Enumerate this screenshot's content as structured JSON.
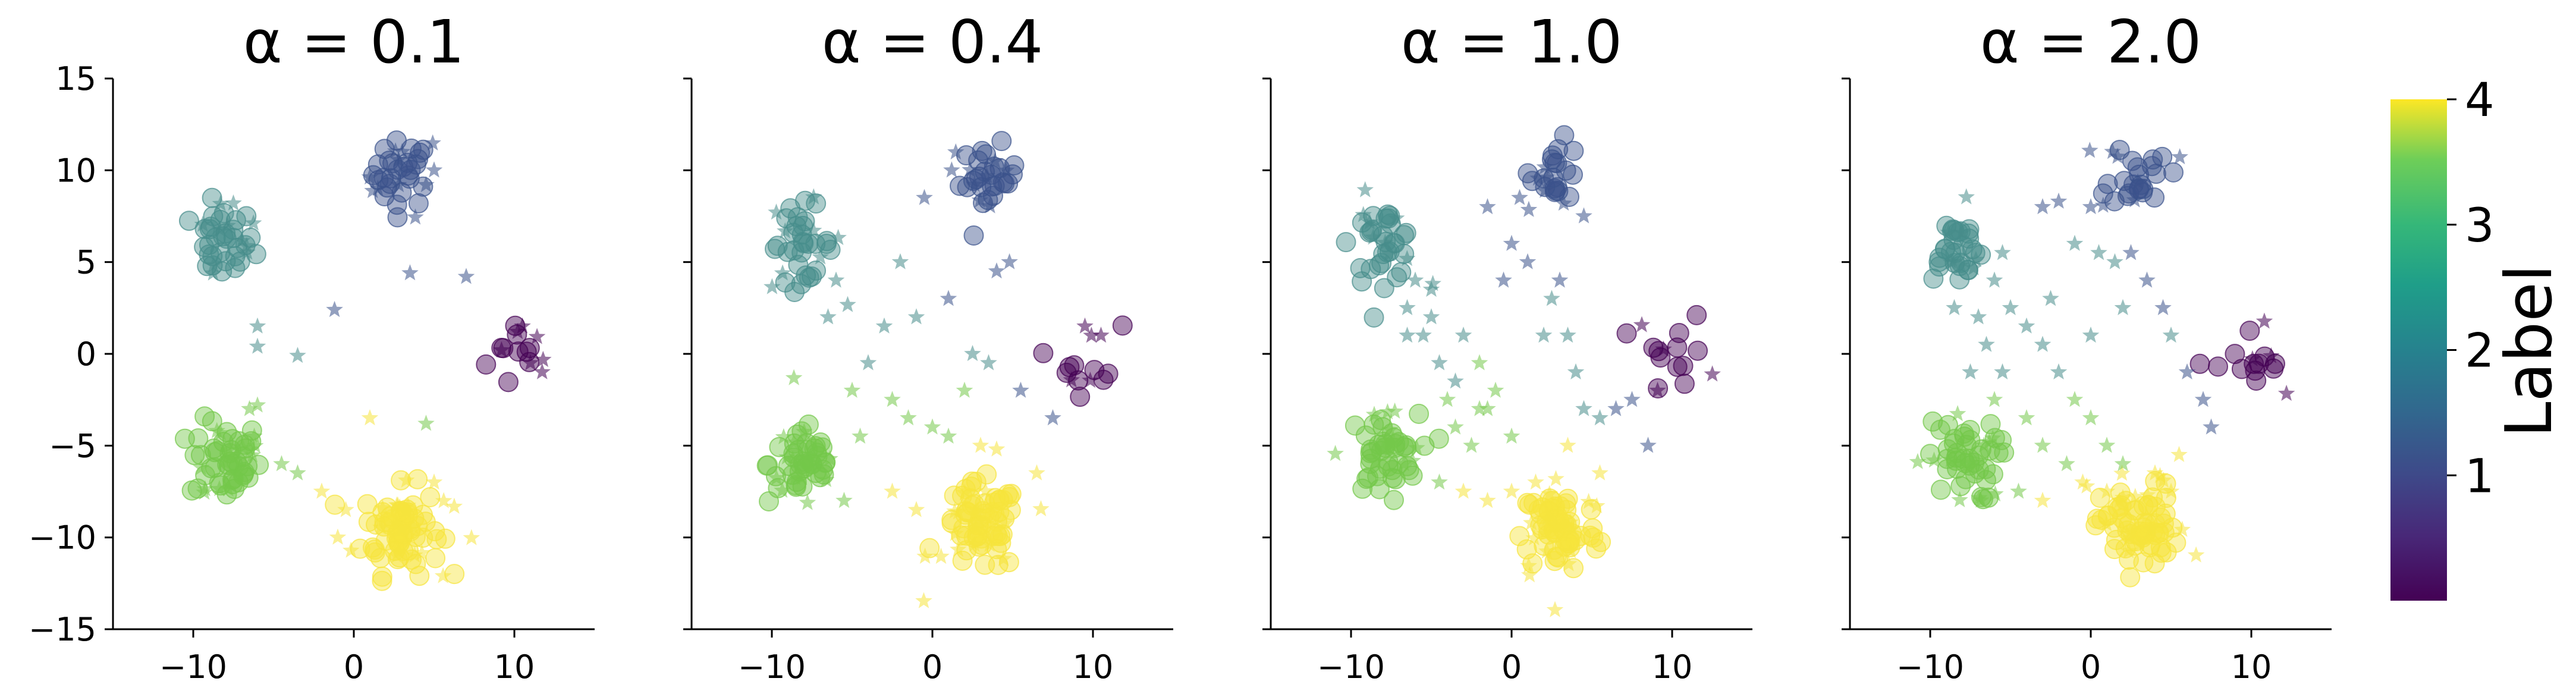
{
  "chart_data": [
    {
      "type": "scatter",
      "title": "α = 0.1",
      "xlim": [
        -15,
        15
      ],
      "ylim": [
        -15,
        15
      ],
      "xticks": [
        -10,
        0,
        10
      ],
      "yticks": [
        -15,
        -10,
        -5,
        0,
        5,
        10,
        15
      ],
      "xticklabels": [
        "−10",
        "0",
        "10"
      ],
      "yticklabels": [
        "−15",
        "−10",
        "−5",
        "0",
        "5",
        "10",
        "15"
      ],
      "show_y_ticklabels": true,
      "clusters": [
        {
          "label": 0,
          "center": [
            10.5,
            0.0
          ],
          "spread": 1.1,
          "n": 10
        },
        {
          "label": 1,
          "center": [
            3.0,
            9.8
          ],
          "spread": 0.9,
          "n": 28
        },
        {
          "label": 2,
          "center": [
            -8.2,
            6.0
          ],
          "spread": 1.0,
          "n": 32
        },
        {
          "label": 3,
          "center": [
            -8.0,
            -5.8
          ],
          "spread": 1.1,
          "n": 45
        },
        {
          "label": 4,
          "center": [
            3.0,
            -9.6
          ],
          "spread": 1.2,
          "n": 65
        }
      ],
      "stars": [
        [
          5.0,
          10.0,
          1
        ],
        [
          4.5,
          9.2,
          1
        ],
        [
          3.5,
          4.4,
          1
        ],
        [
          7.0,
          4.2,
          1
        ],
        [
          1.5,
          9.0,
          1
        ],
        [
          10.5,
          1.5,
          0
        ],
        [
          9.2,
          0.2,
          0
        ],
        [
          11.0,
          -0.5,
          0
        ],
        [
          10.2,
          1.2,
          0
        ],
        [
          -1.2,
          2.4,
          1
        ],
        [
          -3.5,
          -0.1,
          2
        ],
        [
          -6.0,
          1.5,
          2
        ],
        [
          -6.0,
          0.4,
          2
        ],
        [
          -7.5,
          8.2,
          2
        ],
        [
          -6.5,
          -3.0,
          3
        ],
        [
          -6.2,
          -4.5,
          3
        ],
        [
          -4.5,
          -6.0,
          3
        ],
        [
          -3.5,
          -6.5,
          3
        ],
        [
          -6.0,
          -2.8,
          3
        ],
        [
          -2.0,
          -7.5,
          4
        ],
        [
          -0.5,
          -8.5,
          4
        ],
        [
          5.0,
          -7.0,
          4
        ],
        [
          -1.0,
          -10.0,
          4
        ],
        [
          1.0,
          -3.5,
          4
        ],
        [
          4.5,
          -3.8,
          3
        ]
      ]
    },
    {
      "type": "scatter",
      "title": "α = 0.4",
      "xlim": [
        -15,
        15
      ],
      "ylim": [
        -15,
        15
      ],
      "xticks": [
        -10,
        0,
        10
      ],
      "yticks": [
        -15,
        -10,
        -5,
        0,
        5,
        10,
        15
      ],
      "xticklabels": [
        "−10",
        "0",
        "10"
      ],
      "show_y_ticklabels": false,
      "clusters": [
        {
          "label": 0,
          "center": [
            9.8,
            -0.2
          ],
          "spread": 1.0,
          "n": 10
        },
        {
          "label": 1,
          "center": [
            3.5,
            9.5
          ],
          "spread": 0.9,
          "n": 26
        },
        {
          "label": 2,
          "center": [
            -8.2,
            6.0
          ],
          "spread": 1.0,
          "n": 30
        },
        {
          "label": 3,
          "center": [
            -8.0,
            -6.0
          ],
          "spread": 1.1,
          "n": 42
        },
        {
          "label": 4,
          "center": [
            3.0,
            -9.5
          ],
          "spread": 1.2,
          "n": 62
        }
      ],
      "stars": [
        [
          -0.5,
          8.5,
          1
        ],
        [
          1.2,
          10.0,
          1
        ],
        [
          -2.0,
          5.0,
          2
        ],
        [
          4.0,
          4.5,
          1
        ],
        [
          4.8,
          5.0,
          1
        ],
        [
          -1.0,
          2.0,
          2
        ],
        [
          -3.0,
          1.5,
          2
        ],
        [
          1.0,
          3.0,
          1
        ],
        [
          2.5,
          0.0,
          2
        ],
        [
          3.5,
          -0.5,
          2
        ],
        [
          -4.0,
          -0.5,
          2
        ],
        [
          -5.0,
          -2.0,
          3
        ],
        [
          -2.5,
          -2.5,
          3
        ],
        [
          -1.5,
          -3.5,
          3
        ],
        [
          0.0,
          -4.0,
          3
        ],
        [
          1.0,
          -4.5,
          3
        ],
        [
          3.0,
          -5.0,
          4
        ],
        [
          4.0,
          -5.2,
          4
        ],
        [
          -6.0,
          4.0,
          2
        ],
        [
          -6.5,
          2.0,
          2
        ],
        [
          5.5,
          -2.0,
          1
        ],
        [
          7.5,
          -3.5,
          1
        ],
        [
          6.5,
          -6.5,
          4
        ],
        [
          -5.5,
          -8.0,
          3
        ],
        [
          -2.5,
          -7.5,
          4
        ],
        [
          -1.0,
          -8.5,
          4
        ],
        [
          9.5,
          1.5,
          0
        ],
        [
          10.5,
          1.0,
          0
        ],
        [
          2.0,
          -2.0,
          3
        ],
        [
          -4.5,
          -4.5,
          3
        ]
      ]
    },
    {
      "type": "scatter",
      "title": "α = 1.0",
      "xlim": [
        -15,
        15
      ],
      "ylim": [
        -15,
        15
      ],
      "xticks": [
        -10,
        0,
        10
      ],
      "yticks": [
        -15,
        -10,
        -5,
        0,
        5,
        10,
        15
      ],
      "xticklabels": [
        "−10",
        "0",
        "10"
      ],
      "show_y_ticklabels": false,
      "clusters": [
        {
          "label": 0,
          "center": [
            10.3,
            0.0
          ],
          "spread": 1.1,
          "n": 12
        },
        {
          "label": 1,
          "center": [
            2.8,
            10.0
          ],
          "spread": 0.8,
          "n": 20
        },
        {
          "label": 2,
          "center": [
            -8.0,
            6.0
          ],
          "spread": 1.0,
          "n": 30
        },
        {
          "label": 3,
          "center": [
            -8.0,
            -5.5
          ],
          "spread": 1.1,
          "n": 42
        },
        {
          "label": 4,
          "center": [
            3.0,
            -9.5
          ],
          "spread": 1.2,
          "n": 62
        }
      ],
      "stars": [
        [
          -1.5,
          8.0,
          1
        ],
        [
          0.0,
          6.0,
          1
        ],
        [
          -0.5,
          4.0,
          1
        ],
        [
          1.0,
          5.0,
          1
        ],
        [
          2.5,
          3.0,
          2
        ],
        [
          3.5,
          1.0,
          2
        ],
        [
          4.0,
          -1.0,
          2
        ],
        [
          4.5,
          -3.0,
          2
        ],
        [
          5.5,
          -3.5,
          2
        ],
        [
          6.5,
          -3.0,
          1
        ],
        [
          7.5,
          -2.5,
          1
        ],
        [
          8.5,
          -5.0,
          1
        ],
        [
          -6.0,
          4.0,
          2
        ],
        [
          -6.5,
          2.5,
          2
        ],
        [
          -5.5,
          1.0,
          2
        ],
        [
          -4.5,
          -0.5,
          2
        ],
        [
          -4.0,
          -2.5,
          3
        ],
        [
          -3.5,
          -4.0,
          3
        ],
        [
          -2.5,
          -5.0,
          3
        ],
        [
          -1.5,
          -3.0,
          3
        ],
        [
          0.0,
          -4.5,
          3
        ],
        [
          -5.0,
          2.0,
          2
        ],
        [
          -3.0,
          1.0,
          2
        ],
        [
          -2.0,
          -0.5,
          3
        ],
        [
          -1.0,
          -2.0,
          3
        ],
        [
          -4.5,
          -7.0,
          3
        ],
        [
          -3.0,
          -7.5,
          4
        ],
        [
          -1.5,
          -8.0,
          4
        ],
        [
          0.0,
          -7.5,
          4
        ],
        [
          1.5,
          -7.0,
          4
        ],
        [
          3.5,
          -5.0,
          4
        ],
        [
          5.5,
          -6.5,
          4
        ],
        [
          -6.5,
          1.0,
          2
        ],
        [
          -5.0,
          3.5,
          2
        ],
        [
          2.0,
          1.0,
          2
        ],
        [
          3.0,
          4.0,
          1
        ],
        [
          4.5,
          7.5,
          1
        ],
        [
          0.5,
          8.5,
          1
        ],
        [
          -3.5,
          -1.5,
          2
        ],
        [
          -2.0,
          -3.0,
          3
        ]
      ]
    },
    {
      "type": "scatter",
      "title": "α = 2.0",
      "xlim": [
        -15,
        15
      ],
      "ylim": [
        -15,
        15
      ],
      "xticks": [
        -10,
        0,
        10
      ],
      "yticks": [
        -15,
        -10,
        -5,
        0,
        5,
        10,
        15
      ],
      "xticklabels": [
        "−10",
        "0",
        "10"
      ],
      "show_y_ticklabels": false,
      "clusters": [
        {
          "label": 0,
          "center": [
            10.0,
            -0.8
          ],
          "spread": 1.1,
          "n": 12
        },
        {
          "label": 1,
          "center": [
            3.0,
            9.8
          ],
          "spread": 0.9,
          "n": 22
        },
        {
          "label": 2,
          "center": [
            -8.5,
            5.8
          ],
          "spread": 0.9,
          "n": 28
        },
        {
          "label": 3,
          "center": [
            -8.0,
            -5.8
          ],
          "spread": 1.1,
          "n": 42
        },
        {
          "label": 4,
          "center": [
            3.0,
            -9.5
          ],
          "spread": 1.2,
          "n": 62
        }
      ],
      "stars": [
        [
          -3.0,
          8.0,
          1
        ],
        [
          -2.0,
          8.3,
          1
        ],
        [
          0.0,
          8.0,
          1
        ],
        [
          -1.0,
          6.0,
          2
        ],
        [
          0.5,
          5.5,
          2
        ],
        [
          1.5,
          5.0,
          2
        ],
        [
          2.5,
          5.5,
          1
        ],
        [
          3.5,
          4.0,
          1
        ],
        [
          4.5,
          2.5,
          1
        ],
        [
          5.0,
          1.0,
          2
        ],
        [
          6.0,
          -1.0,
          1
        ],
        [
          7.0,
          -2.5,
          1
        ],
        [
          7.5,
          -4.0,
          1
        ],
        [
          -5.0,
          2.5,
          2
        ],
        [
          -4.0,
          1.5,
          2
        ],
        [
          -3.0,
          0.5,
          2
        ],
        [
          -2.0,
          -1.0,
          2
        ],
        [
          -1.0,
          -2.5,
          3
        ],
        [
          0.0,
          -3.5,
          3
        ],
        [
          1.0,
          -5.0,
          3
        ],
        [
          2.0,
          -6.0,
          3
        ],
        [
          4.0,
          -6.5,
          4
        ],
        [
          5.0,
          -7.5,
          4
        ],
        [
          -6.0,
          4.0,
          2
        ],
        [
          -7.0,
          2.0,
          2
        ],
        [
          -6.5,
          0.5,
          2
        ],
        [
          -5.5,
          -1.0,
          2
        ],
        [
          -6.0,
          -2.5,
          3
        ],
        [
          -4.0,
          -3.5,
          3
        ],
        [
          -3.0,
          -5.0,
          3
        ],
        [
          -1.5,
          -6.0,
          3
        ],
        [
          -0.5,
          -7.0,
          4
        ],
        [
          1.0,
          -7.5,
          4
        ],
        [
          -4.5,
          -7.5,
          3
        ],
        [
          -3.0,
          -8.0,
          4
        ],
        [
          -5.5,
          5.5,
          2
        ],
        [
          -2.5,
          3.0,
          2
        ],
        [
          0.0,
          1.0,
          2
        ],
        [
          2.0,
          2.5,
          2
        ],
        [
          5.5,
          -5.5,
          4
        ],
        [
          -8.5,
          2.5,
          2
        ],
        [
          -7.5,
          -1.0,
          2
        ]
      ]
    }
  ],
  "colorbar": {
    "label": "Label",
    "range": [
      0,
      4
    ],
    "ticks": [
      1,
      2,
      3,
      4
    ],
    "ticklabels": [
      "1",
      "2",
      "3",
      "4"
    ],
    "colormap": "viridis"
  },
  "colors": {
    "viridis": [
      "#440154",
      "#3b528b",
      "#21918c",
      "#5ec962",
      "#fde725"
    ],
    "label_colors": [
      "#440154",
      "#3b528b",
      "#478d8b",
      "#74c84a",
      "#f6e43c"
    ]
  }
}
